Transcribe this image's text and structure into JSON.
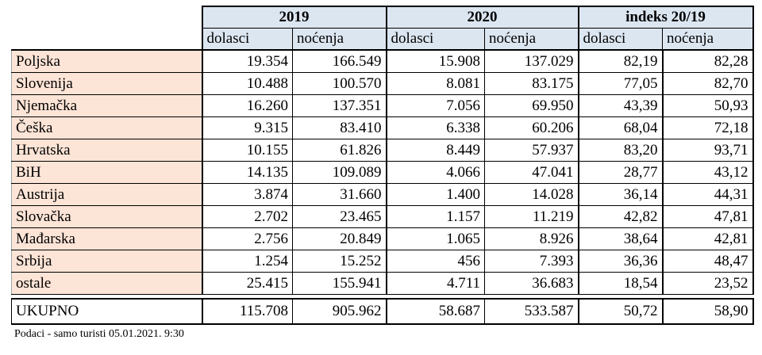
{
  "header": {
    "year_2019": "2019",
    "year_2020": "2020",
    "index": "indeks 20/19",
    "sub_dolasci": "dolasci",
    "sub_nocenja": "noćenja"
  },
  "rows": [
    {
      "country": "Poljska",
      "d19": "19.354",
      "n19": "166.549",
      "d20": "15.908",
      "n20": "137.029",
      "di": "82,19",
      "ni": "82,28"
    },
    {
      "country": "Slovenija",
      "d19": "10.488",
      "n19": "100.570",
      "d20": "8.081",
      "n20": "83.175",
      "di": "77,05",
      "ni": "82,70"
    },
    {
      "country": "Njemačka",
      "d19": "16.260",
      "n19": "137.351",
      "d20": "7.056",
      "n20": "69.950",
      "di": "43,39",
      "ni": "50,93"
    },
    {
      "country": "Češka",
      "d19": "9.315",
      "n19": "83.410",
      "d20": "6.338",
      "n20": "60.206",
      "di": "68,04",
      "ni": "72,18"
    },
    {
      "country": "Hrvatska",
      "d19": "10.155",
      "n19": "61.826",
      "d20": "8.449",
      "n20": "57.937",
      "di": "83,20",
      "ni": "93,71"
    },
    {
      "country": "BiH",
      "d19": "14.135",
      "n19": "109.089",
      "d20": "4.066",
      "n20": "47.041",
      "di": "28,77",
      "ni": "43,12"
    },
    {
      "country": "Austrija",
      "d19": "3.874",
      "n19": "31.660",
      "d20": "1.400",
      "n20": "14.028",
      "di": "36,14",
      "ni": "44,31"
    },
    {
      "country": "Slovačka",
      "d19": "2.702",
      "n19": "23.465",
      "d20": "1.157",
      "n20": "11.219",
      "di": "42,82",
      "ni": "47,81"
    },
    {
      "country": "Mađarska",
      "d19": "2.756",
      "n19": "20.849",
      "d20": "1.065",
      "n20": "8.926",
      "di": "38,64",
      "ni": "42,81"
    },
    {
      "country": "Srbija",
      "d19": "1.254",
      "n19": "15.252",
      "d20": "456",
      "n20": "7.393",
      "di": "36,36",
      "ni": "48,47"
    },
    {
      "country": "ostale",
      "d19": "25.415",
      "n19": "155.941",
      "d20": "4.711",
      "n20": "36.683",
      "di": "18,54",
      "ni": "23,52"
    }
  ],
  "total": {
    "country": "UKUPNO",
    "d19": "115.708",
    "n19": "905.962",
    "d20": "58.687",
    "n20": "533.587",
    "di": "50,72",
    "ni": "58,90"
  },
  "footnote": "Podaci - samo turisti 05.01.2021. 9:30",
  "colors": {
    "header_bg": "#dce6f1",
    "country_bg": "#fce4d6"
  }
}
